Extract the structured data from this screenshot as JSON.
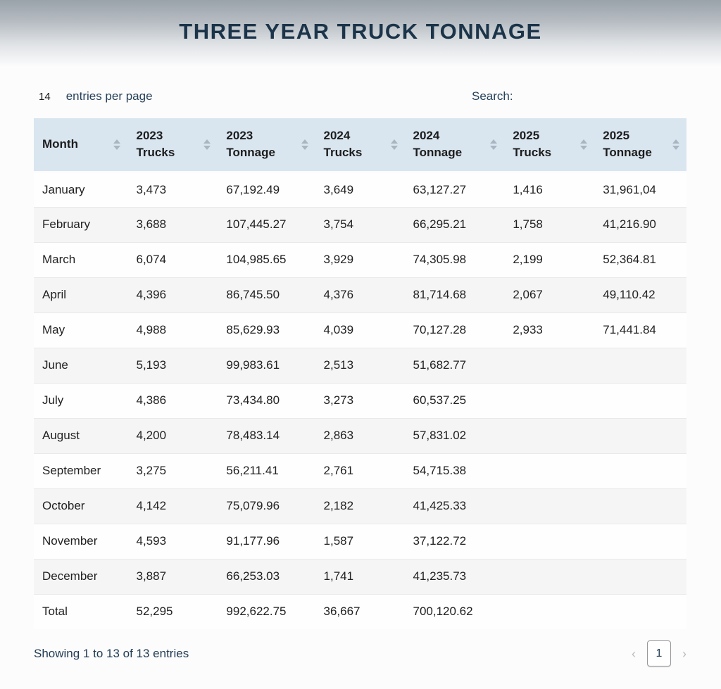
{
  "header": {
    "title": "THREE YEAR TRUCK TONNAGE"
  },
  "controls": {
    "page_size": "14",
    "entries_label": "entries per page",
    "search_label": "Search:",
    "search_value": ""
  },
  "table": {
    "columns": [
      {
        "id": "month",
        "lines": [
          "Month"
        ]
      },
      {
        "id": "trucks-2023",
        "lines": [
          "2023",
          "Trucks"
        ]
      },
      {
        "id": "tonnage-2023",
        "lines": [
          "2023",
          "Tonnage"
        ]
      },
      {
        "id": "trucks-2024",
        "lines": [
          "2024",
          "Trucks"
        ]
      },
      {
        "id": "tonnage-2024",
        "lines": [
          "2024",
          "Tonnage"
        ]
      },
      {
        "id": "trucks-2025",
        "lines": [
          "2025",
          "Trucks"
        ]
      },
      {
        "id": "tonnage-2025",
        "lines": [
          "2025",
          "Tonnage"
        ]
      }
    ],
    "rows": [
      [
        "January",
        "3,473",
        "67,192.49",
        "3,649",
        "63,127.27",
        "1,416",
        "31,961,04"
      ],
      [
        "February",
        "3,688",
        "107,445.27",
        "3,754",
        "66,295.21",
        "1,758",
        "41,216.90"
      ],
      [
        "March",
        "6,074",
        "104,985.65",
        "3,929",
        "74,305.98",
        "2,199",
        "52,364.81"
      ],
      [
        "April",
        "4,396",
        "86,745.50",
        "4,376",
        "81,714.68",
        "2,067",
        "49,110.42"
      ],
      [
        "May",
        "4,988",
        "85,629.93",
        "4,039",
        "70,127.28",
        "2,933",
        "71,441.84"
      ],
      [
        "June",
        "5,193",
        "99,983.61",
        "2,513",
        "51,682.77",
        "",
        ""
      ],
      [
        "July",
        "4,386",
        "73,434.80",
        "3,273",
        "60,537.25",
        "",
        ""
      ],
      [
        "August",
        "4,200",
        "78,483.14",
        "2,863",
        "57,831.02",
        "",
        ""
      ],
      [
        "September",
        "3,275",
        "56,211.41",
        "2,761",
        "54,715.38",
        "",
        ""
      ],
      [
        "October",
        "4,142",
        "75,079.96",
        "2,182",
        "41,425.33",
        "",
        ""
      ],
      [
        "November",
        "4,593",
        "91,177.96",
        "1,587",
        "37,122.72",
        "",
        ""
      ],
      [
        "December",
        "3,887",
        "66,253.03",
        "1,741",
        "41,235.73",
        "",
        ""
      ],
      [
        "Total",
        "52,295",
        "992,622.75",
        "36,667",
        "700,120.62",
        "",
        ""
      ]
    ]
  },
  "footer": {
    "showing_text": "Showing 1 to 13 of 13 entries",
    "prev_icon": "‹",
    "page_number": "1",
    "next_icon": "›"
  },
  "colors": {
    "title": "#1b3449",
    "table_header_bg": "#d9e5ef",
    "row_stripe": "#f5f5f6",
    "accent_text": "#26415a"
  }
}
